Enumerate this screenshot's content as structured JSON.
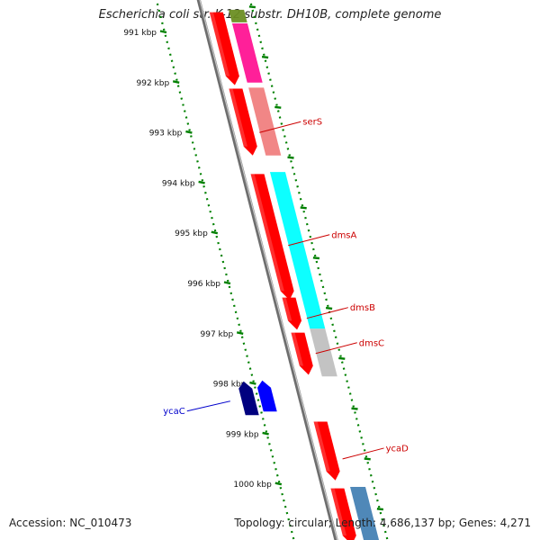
{
  "header": {
    "title": "Escherichia coli str. K-12 substr. DH10B, complete genome"
  },
  "footer": {
    "accession": "Accession: NC_010473",
    "topology": "Topology: circular; Length: 4,686,137 bp; Genes: 4,271"
  },
  "colors": {
    "cds": "#ff0000",
    "backbone": "#888888",
    "ruler": "#008000",
    "forward_label": "#cc0000",
    "reverse_label": "#0000cc",
    "dark_blue": "#00007f",
    "blue": "#0000ff",
    "cyan": "#00ffff",
    "magenta": "#ff1493",
    "salmon": "#f08080",
    "gray": "#c0c0c0",
    "steel_blue": "#4682b4",
    "olive": "#6b8e23"
  },
  "chart_data": {
    "type": "genome-map",
    "unit": "kbp",
    "ticks": [
      {
        "kbp": 991,
        "label": "991 kbp"
      },
      {
        "kbp": 992,
        "label": "992 kbp"
      },
      {
        "kbp": 993,
        "label": "993 kbp"
      },
      {
        "kbp": 994,
        "label": "994 kbp"
      },
      {
        "kbp": 995,
        "label": "995 kbp"
      },
      {
        "kbp": 996,
        "label": "996 kbp"
      },
      {
        "kbp": 997,
        "label": "997 kbp"
      },
      {
        "kbp": 998,
        "label": "998 kbp"
      },
      {
        "kbp": 999,
        "label": "999 kbp"
      },
      {
        "kbp": 1000,
        "label": "1000 kbp"
      }
    ],
    "forward_genes": [
      {
        "start": 990.6,
        "end": 992.05,
        "color": "#ff0000"
      },
      {
        "start": 992.12,
        "end": 993.45,
        "color": "#ff0000"
      },
      {
        "start": 993.82,
        "end": 996.33,
        "color": "#ff0000"
      },
      {
        "start": 996.28,
        "end": 996.92,
        "color": "#ff0000"
      },
      {
        "start": 996.98,
        "end": 997.82,
        "color": "#ff0000"
      },
      {
        "start": 998.75,
        "end": 999.92,
        "color": "#ff0000"
      },
      {
        "start": 1000.08,
        "end": 1001.2,
        "color": "#ff0000"
      }
    ],
    "reverse_genes": [
      {
        "start": 997.95,
        "end": 998.62,
        "color": "#00007f"
      },
      {
        "start": 997.93,
        "end": 998.55,
        "color": "#0000ff"
      }
    ],
    "feature_bands": [
      {
        "start": 990.55,
        "end": 990.8,
        "color": "#6b8e23"
      },
      {
        "start": 990.82,
        "end": 992.0,
        "color": "#ff1493"
      },
      {
        "start": 992.1,
        "end": 993.45,
        "color": "#f08080"
      },
      {
        "start": 993.78,
        "end": 996.9,
        "color": "#00ffff"
      },
      {
        "start": 996.9,
        "end": 997.85,
        "color": "#c0c0c0"
      },
      {
        "start": 1000.05,
        "end": 1001.2,
        "color": "#4682b4"
      }
    ],
    "labels": [
      {
        "name": "serS",
        "strand": "forward",
        "kbp": 992.85
      },
      {
        "name": "dmsA",
        "strand": "forward",
        "kbp": 995.1
      },
      {
        "name": "dmsB",
        "strand": "forward",
        "kbp": 996.55
      },
      {
        "name": "dmsC",
        "strand": "forward",
        "kbp": 997.25
      },
      {
        "name": "ycaC",
        "strand": "reverse",
        "kbp": 998.45
      },
      {
        "name": "ycaD",
        "strand": "forward",
        "kbp": 999.35
      }
    ]
  }
}
